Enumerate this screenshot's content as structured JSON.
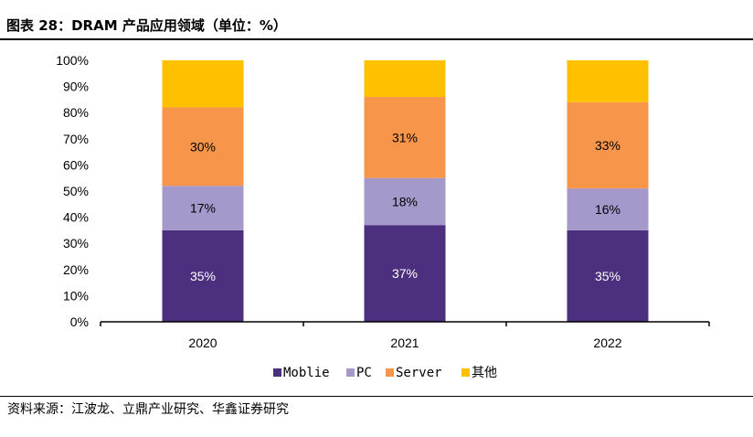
{
  "header": {
    "title": "图表 28：DRAM 产品应用领域（单位：%）"
  },
  "footer": {
    "source": "资料来源：江波龙、立鼎产业研究、华鑫证券研究"
  },
  "chart_data": {
    "type": "bar",
    "stacked": true,
    "categories": [
      "2020",
      "2021",
      "2022"
    ],
    "series": [
      {
        "name": "Moblie",
        "values": [
          35,
          37,
          35
        ],
        "labels": [
          "35%",
          "37%",
          "35%"
        ],
        "color": "#4d2f7f",
        "label_color": "#ffffff"
      },
      {
        "name": "PC",
        "values": [
          17,
          18,
          16
        ],
        "labels": [
          "17%",
          "18%",
          "16%"
        ],
        "color": "#a599cc",
        "label_color": "#000000"
      },
      {
        "name": "Server",
        "values": [
          30,
          31,
          33
        ],
        "labels": [
          "30%",
          "31%",
          "33%"
        ],
        "color": "#f7954a",
        "label_color": "#000000"
      },
      {
        "name": "其他",
        "values": [
          18,
          14,
          16
        ],
        "labels": [
          "",
          "",
          ""
        ],
        "color": "#ffc000",
        "label_color": "#000000"
      }
    ],
    "yticks": [
      "0%",
      "10%",
      "20%",
      "30%",
      "40%",
      "50%",
      "60%",
      "70%",
      "80%",
      "90%",
      "100%"
    ],
    "ylim": [
      0,
      100
    ],
    "legend_position": "bottom"
  }
}
